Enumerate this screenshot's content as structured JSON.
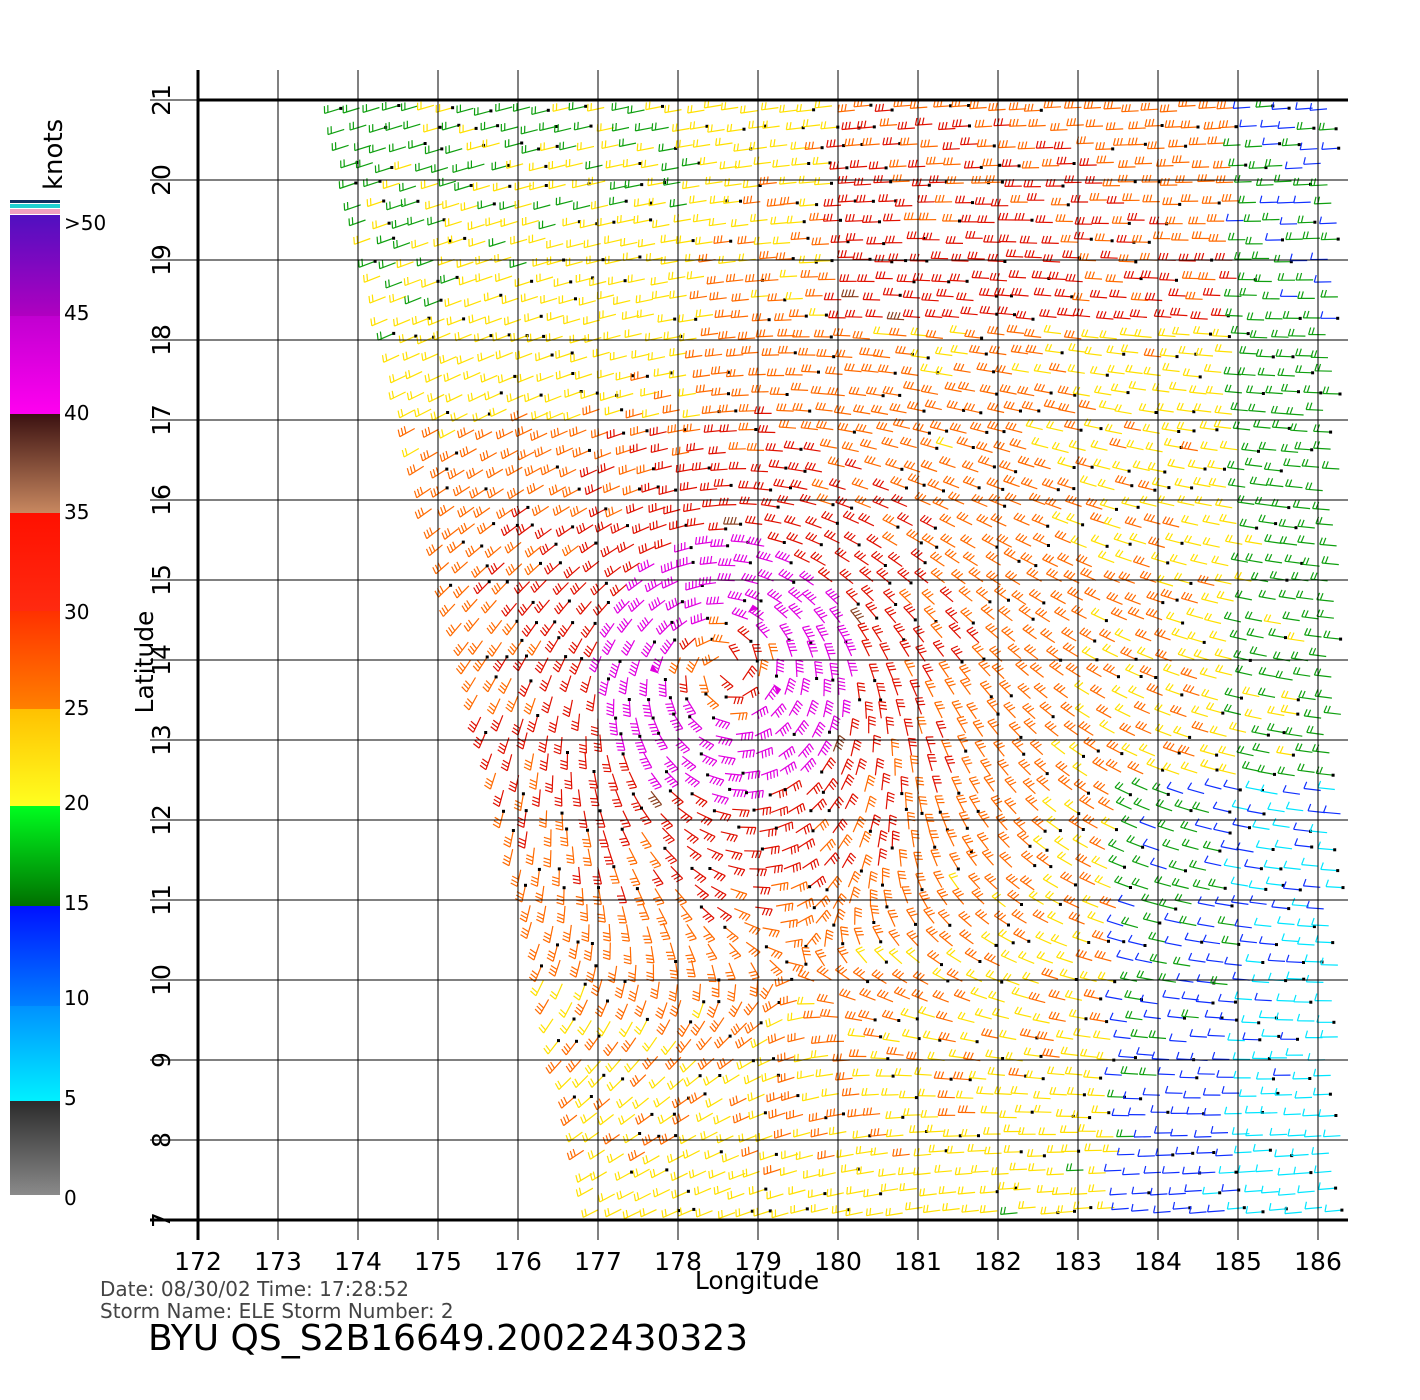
{
  "colorbar": {
    "unit": "knots",
    "ticks": [
      "0",
      "5",
      "10",
      "15",
      "20",
      "25",
      "30",
      "35",
      "40",
      "45",
      ">50"
    ]
  },
  "axes": {
    "x_label": "Longitude",
    "y_label": "Latitude",
    "x_ticks": [
      "172",
      "173",
      "174",
      "175",
      "176",
      "177",
      "178",
      "179",
      "180",
      "181",
      "182",
      "183",
      "184",
      "185",
      "186"
    ],
    "y_ticks": [
      "7",
      "8",
      "9",
      "10",
      "11",
      "12",
      "13",
      "14",
      "15",
      "16",
      "17",
      "18",
      "19",
      "20",
      "21"
    ]
  },
  "footer": {
    "line1": "Date: 08/30/02   Time: 17:28:52",
    "line2": "Storm  Name:  ELE    Storm  Number:  2",
    "title": "BYU  QS_S2B16649.20022430323"
  },
  "wind_field": {
    "description_colors": {
      "0-5": "#555555",
      "5-10": "#00e5ff",
      "10-15": "#1030ff",
      "15-20": "#10a010",
      "20-25": "#ffe000",
      "25-30": "#ff6a00",
      "30-35": "#e01000",
      "35-40": "#8a4020",
      "40-45": "#e000e0",
      ">50": "#6a10c0"
    },
    "storm_center": {
      "lon": 178.6,
      "lat": 13.9
    }
  }
}
